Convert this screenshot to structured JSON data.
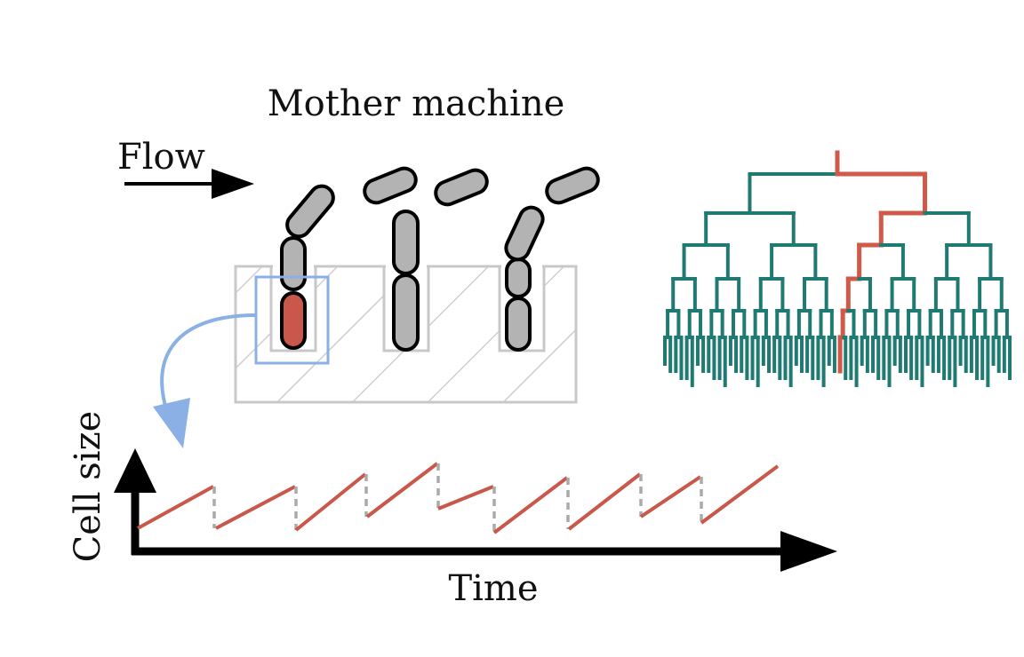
{
  "title": "Mother machine",
  "flow_label": "Flow",
  "x_axis_label": "Time",
  "y_axis_label": "Cell size",
  "colors": {
    "cell_fill": "#b3b3b3",
    "cell_outline": "#000000",
    "mother_cell": "#c9584b",
    "channel_outline": "#c8c8c8",
    "highlight_box": "#8ab0e6",
    "tree": "#1f7a72",
    "lineage": "#cf5a4a",
    "growth_line": "#c9584b",
    "division_line": "#aaaaaa",
    "axis": "#000000"
  }
}
